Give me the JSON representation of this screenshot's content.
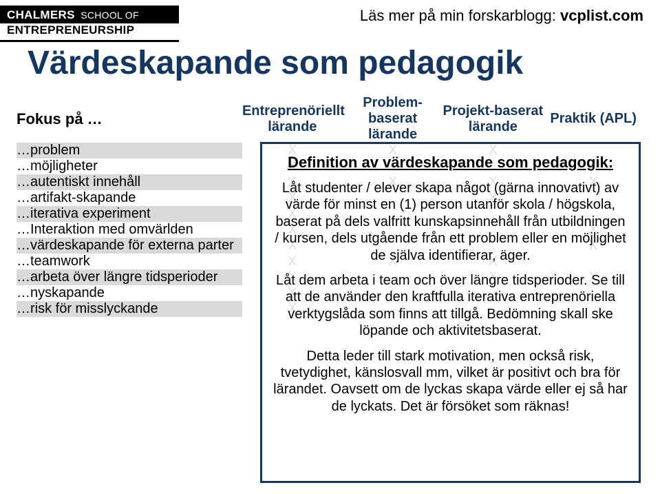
{
  "logo": {
    "brand": "CHALMERS",
    "sub": "SCHOOL OF",
    "line2": "ENTREPRENEURSHIP"
  },
  "top_note": {
    "prefix": "Läs mer på min forskarblogg: ",
    "link": "vcplist.com"
  },
  "title": "Värdeskapande som pedagogik",
  "table": {
    "focus_label": "Fokus på …",
    "headers": [
      "Entreprenöriellt lärande",
      "Problem-baserat lärande",
      "Projekt-baserat lärande",
      "Praktik (APL)"
    ],
    "rows": [
      "…problem",
      "…möjligheter",
      "…autentiskt innehåll",
      "…artifakt-skapande",
      "…iterativa experiment",
      "…Interaktion med omvärlden",
      "…värdeskapande för externa parter",
      "…teamwork",
      "…arbeta över längre tidsperioder",
      "…nyskapande",
      "…risk för misslyckande"
    ]
  },
  "overlay": {
    "title": "Definition av värdeskapande som pedagogik:",
    "p1": "Låt studenter / elever skapa något (gärna innovativt) av värde för minst en (1) person utanför skola / högskola, baserat på dels valfritt kunskapsinnehåll från utbildningen / kursen, dels utgående från ett problem eller en möjlighet de själva identifierar, äger.",
    "p2": "Låt dem arbeta i team och över längre tidsperioder. Se till att de använder den kraftfulla iterativa entreprenöriella verktygslåda som finns att tillgå. Bedömning skall ske löpande och aktivitetsbaserat.",
    "p3": "Detta leder till stark motivation, men också risk, tvetydighet, känslosvall mm, vilket är positivt och bra för lärandet. Oavsett om de lyckas skapa värde eller ej så har de lyckats. Det är försöket som räknas!"
  }
}
